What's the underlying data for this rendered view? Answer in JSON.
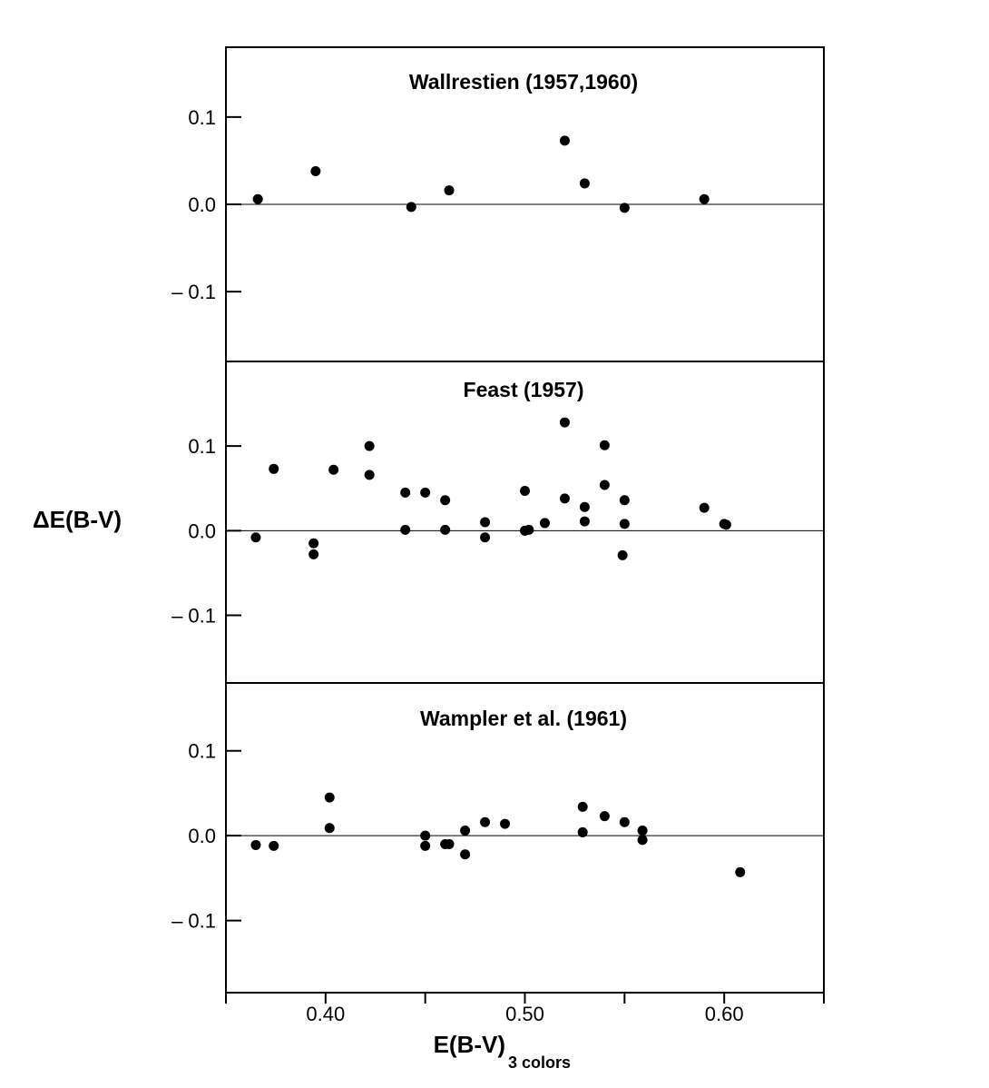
{
  "chart_data": [
    {
      "type": "scatter",
      "title": "Wallrestien (1957,1960)",
      "ylim": [
        -0.18,
        0.18
      ],
      "xlim": [
        0.35,
        0.65
      ],
      "yticks": [
        0.1,
        0.0,
        -0.1
      ],
      "ytick_labels": [
        "0.1",
        "0.0",
        "– 0.1"
      ],
      "reference_line": 0.0,
      "points": [
        {
          "x": 0.366,
          "y": 0.006
        },
        {
          "x": 0.395,
          "y": 0.038
        },
        {
          "x": 0.443,
          "y": -0.003
        },
        {
          "x": 0.462,
          "y": 0.016
        },
        {
          "x": 0.52,
          "y": 0.073
        },
        {
          "x": 0.53,
          "y": 0.024
        },
        {
          "x": 0.55,
          "y": -0.004
        },
        {
          "x": 0.59,
          "y": 0.006
        }
      ]
    },
    {
      "type": "scatter",
      "title": "Feast (1957)",
      "ylim": [
        -0.18,
        0.2
      ],
      "xlim": [
        0.35,
        0.65
      ],
      "yticks": [
        0.1,
        0.0,
        -0.1
      ],
      "ytick_labels": [
        "0.1",
        "0.0",
        "– 0.1"
      ],
      "reference_line": 0.0,
      "points": [
        {
          "x": 0.365,
          "y": -0.008
        },
        {
          "x": 0.374,
          "y": 0.073
        },
        {
          "x": 0.394,
          "y": -0.015
        },
        {
          "x": 0.394,
          "y": -0.028
        },
        {
          "x": 0.404,
          "y": 0.072
        },
        {
          "x": 0.422,
          "y": 0.1
        },
        {
          "x": 0.422,
          "y": 0.066
        },
        {
          "x": 0.44,
          "y": 0.045
        },
        {
          "x": 0.44,
          "y": 0.001
        },
        {
          "x": 0.45,
          "y": 0.045
        },
        {
          "x": 0.46,
          "y": 0.036
        },
        {
          "x": 0.46,
          "y": 0.001
        },
        {
          "x": 0.48,
          "y": 0.01
        },
        {
          "x": 0.48,
          "y": -0.008
        },
        {
          "x": 0.5,
          "y": 0.047
        },
        {
          "x": 0.5,
          "y": 0.0
        },
        {
          "x": 0.502,
          "y": 0.001
        },
        {
          "x": 0.51,
          "y": 0.009
        },
        {
          "x": 0.52,
          "y": 0.128
        },
        {
          "x": 0.52,
          "y": 0.038
        },
        {
          "x": 0.53,
          "y": 0.028
        },
        {
          "x": 0.53,
          "y": 0.011
        },
        {
          "x": 0.54,
          "y": 0.101
        },
        {
          "x": 0.54,
          "y": 0.054
        },
        {
          "x": 0.55,
          "y": 0.036
        },
        {
          "x": 0.55,
          "y": 0.008
        },
        {
          "x": 0.549,
          "y": -0.029
        },
        {
          "x": 0.59,
          "y": 0.027
        },
        {
          "x": 0.6,
          "y": 0.008
        },
        {
          "x": 0.601,
          "y": 0.007
        }
      ]
    },
    {
      "type": "scatter",
      "title": "Wampler et al. (1961)",
      "ylim": [
        -0.185,
        0.18
      ],
      "xlim": [
        0.35,
        0.65
      ],
      "yticks": [
        0.1,
        0.0,
        -0.1
      ],
      "ytick_labels": [
        "0.1",
        "0.0",
        "– 0.1"
      ],
      "xticks": [
        0.4,
        0.5,
        0.6
      ],
      "xtick_labels": [
        "0.40",
        "0.50",
        "0.60"
      ],
      "reference_line": 0.0,
      "points": [
        {
          "x": 0.365,
          "y": -0.011
        },
        {
          "x": 0.374,
          "y": -0.012
        },
        {
          "x": 0.402,
          "y": 0.045
        },
        {
          "x": 0.402,
          "y": 0.009
        },
        {
          "x": 0.45,
          "y": 0.0
        },
        {
          "x": 0.45,
          "y": -0.012
        },
        {
          "x": 0.46,
          "y": -0.01
        },
        {
          "x": 0.462,
          "y": -0.01
        },
        {
          "x": 0.47,
          "y": 0.006
        },
        {
          "x": 0.47,
          "y": -0.022
        },
        {
          "x": 0.48,
          "y": 0.016
        },
        {
          "x": 0.49,
          "y": 0.014
        },
        {
          "x": 0.529,
          "y": 0.034
        },
        {
          "x": 0.529,
          "y": 0.004
        },
        {
          "x": 0.54,
          "y": 0.023
        },
        {
          "x": 0.55,
          "y": 0.016
        },
        {
          "x": 0.559,
          "y": 0.006
        },
        {
          "x": 0.559,
          "y": -0.005
        },
        {
          "x": 0.608,
          "y": -0.043
        }
      ]
    }
  ],
  "ylabel": "ΔE(B-V)",
  "xlabel_main": "E(B-V)",
  "xlabel_sub": "3 colors"
}
